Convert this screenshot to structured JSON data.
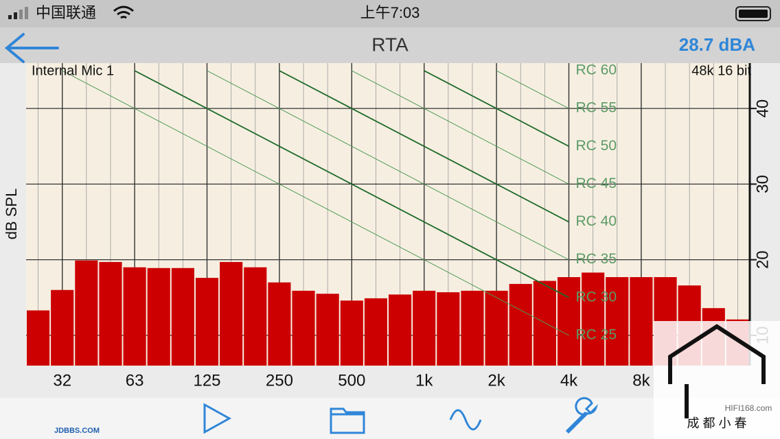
{
  "status_bar": {
    "carrier": "中国联通",
    "time": "上午7:03"
  },
  "nav": {
    "title": "RTA",
    "level": "28.7 dBA"
  },
  "chart_data": {
    "type": "bar",
    "y_label": "dB SPL",
    "source": "Internal Mic 1",
    "format": "48k 16 bit",
    "categories": [
      null,
      "32",
      null,
      null,
      "63",
      null,
      null,
      "125",
      null,
      null,
      "250",
      null,
      null,
      "500",
      null,
      null,
      "1k",
      null,
      null,
      "2k",
      null,
      null,
      "4k",
      null,
      null,
      "8k",
      null,
      null,
      null,
      null
    ],
    "values": [
      13.3,
      16.0,
      19.9,
      19.7,
      19.0,
      18.9,
      18.9,
      17.6,
      19.7,
      19.0,
      17.0,
      15.9,
      15.5,
      14.6,
      14.9,
      15.4,
      15.9,
      15.7,
      15.9,
      15.9,
      16.8,
      17.2,
      17.7,
      18.3,
      17.7,
      17.7,
      17.7,
      16.6,
      13.6,
      12.1
    ],
    "color": "#cc0000",
    "ylim": [
      6,
      46
    ],
    "yticks": [
      10,
      20,
      30,
      40
    ],
    "grid": true,
    "rc_curves": [
      {
        "name": "RC 60",
        "color": "#2f7a3a",
        "values": [
          null,
          null,
          null,
          null,
          null,
          null,
          null,
          45
        ]
      },
      {
        "name": "RC 55",
        "color": "#4f9a58",
        "values": [
          null,
          null,
          null,
          null,
          null,
          null,
          45,
          40
        ]
      },
      {
        "name": "RC 50",
        "color": "#1f6a2a",
        "values": [
          null,
          null,
          null,
          null,
          null,
          45,
          40,
          35
        ]
      },
      {
        "name": "RC 45",
        "color": "#4f9a58",
        "values": [
          null,
          null,
          null,
          null,
          45,
          40,
          35,
          30
        ]
      },
      {
        "name": "RC 40",
        "color": "#1f6a2a",
        "values": [
          null,
          null,
          null,
          45,
          40,
          35,
          30,
          25
        ]
      },
      {
        "name": "RC 35",
        "color": "#4f9a58",
        "values": [
          null,
          null,
          45,
          40,
          35,
          30,
          25,
          20
        ]
      },
      {
        "name": "RC 30",
        "color": "#1f6a2a",
        "values": [
          null,
          45,
          40,
          35,
          30,
          25,
          20,
          15
        ]
      },
      {
        "name": "RC 25",
        "color": "#4f9a58",
        "values": [
          45,
          40,
          35,
          30,
          25,
          20,
          15,
          10
        ]
      }
    ]
  },
  "watermark": {
    "site": "HIFI168.com",
    "author": "成 都 小 春",
    "forum": "JDBBS.COM"
  }
}
